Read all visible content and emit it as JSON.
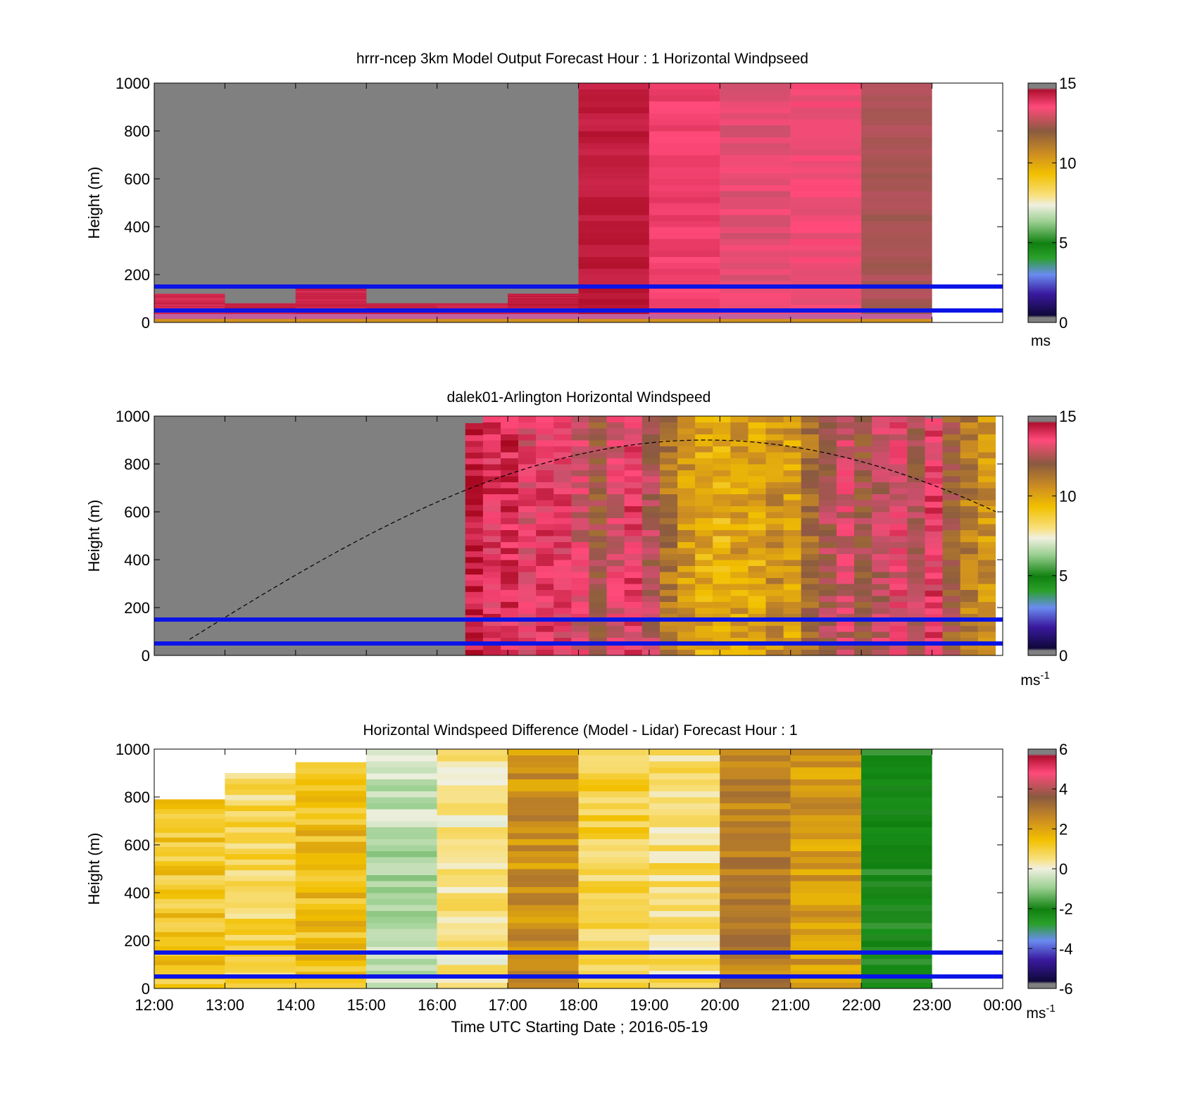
{
  "figure": {
    "xlabel": "Time UTC  Starting Date ; 2016-05-19",
    "x_tick_labels": [
      "12:00",
      "13:00",
      "14:00",
      "15:00",
      "16:00",
      "17:00",
      "18:00",
      "19:00",
      "20:00",
      "21:00",
      "22:00",
      "23:00",
      "00:00"
    ],
    "colors": {
      "blue_line": "#0a14e6",
      "missing": "#808080"
    }
  },
  "chart_data": [
    {
      "type": "heatmap",
      "title": "hrrr-ncep 3km Model Output   Forecast Hour : 1 Horizontal Windpseed",
      "xlabel": "",
      "ylabel": "Height (m)",
      "xlim": [
        12,
        24
      ],
      "ylim": [
        0,
        1000
      ],
      "y_ticks": [
        0,
        200,
        400,
        600,
        800,
        1000
      ],
      "colorbar": {
        "min": 0,
        "max": 15,
        "ticks": [
          0,
          5,
          10,
          15
        ],
        "unit_label": "ms",
        "unit_sup": "",
        "palette": "speed"
      },
      "reference_lines_m": [
        150,
        50
      ],
      "columns": [
        {
          "start": 12,
          "end": 13,
          "top": 120,
          "value": 14.3
        },
        {
          "start": 13,
          "end": 14,
          "top": 80,
          "value": 14.5
        },
        {
          "start": 14,
          "end": 15,
          "top": 150,
          "value": 14.4
        },
        {
          "start": 15,
          "end": 16,
          "top": 80,
          "value": 14.5
        },
        {
          "start": 16,
          "end": 17,
          "top": 80,
          "value": 14.4
        },
        {
          "start": 17,
          "end": 18,
          "top": 120,
          "value": 14.5
        },
        {
          "start": 18,
          "end": 19,
          "top": 1000,
          "value": 14.6
        },
        {
          "start": 19,
          "end": 20,
          "top": 1000,
          "value": 13.8
        },
        {
          "start": 20,
          "end": 21,
          "top": 1000,
          "value": 13.3
        },
        {
          "start": 21,
          "end": 22,
          "top": 1000,
          "value": 13.5
        },
        {
          "start": 22,
          "end": 23,
          "top": 1000,
          "value": 12.5
        }
      ]
    },
    {
      "type": "heatmap",
      "title": "dalek01-Arlington  Horizontal Windspeed",
      "xlabel": "",
      "ylabel": "Height (m)",
      "xlim": [
        12,
        24
      ],
      "ylim": [
        0,
        1000
      ],
      "y_ticks": [
        0,
        200,
        400,
        600,
        800,
        1000
      ],
      "colorbar": {
        "min": 0,
        "max": 15,
        "ticks": [
          0,
          5,
          10,
          15
        ],
        "unit_label": "ms",
        "unit_sup": "-1",
        "palette": "speed"
      },
      "reference_lines_m": [
        150,
        50
      ],
      "solar_curve": {
        "peak_time": 19.8,
        "peak_height": 900,
        "zero_time": 12.5
      },
      "columns": [
        {
          "start": 16.4,
          "end": 16.65,
          "top": 970,
          "value": 14.6
        },
        {
          "start": 16.65,
          "end": 16.9,
          "top": 1000,
          "value": 14.0
        },
        {
          "start": 16.9,
          "end": 17.15,
          "top": 1000,
          "value": 14.2
        },
        {
          "start": 17.15,
          "end": 17.4,
          "top": 1000,
          "value": 13.5
        },
        {
          "start": 17.4,
          "end": 17.65,
          "top": 1000,
          "value": 13.8
        },
        {
          "start": 17.65,
          "end": 17.9,
          "top": 1000,
          "value": 13.7
        },
        {
          "start": 17.9,
          "end": 18.15,
          "top": 1000,
          "value": 13.2
        },
        {
          "start": 18.15,
          "end": 18.4,
          "top": 1000,
          "value": 12.2
        },
        {
          "start": 18.4,
          "end": 18.65,
          "top": 1000,
          "value": 13.3
        },
        {
          "start": 18.65,
          "end": 18.9,
          "top": 1000,
          "value": 13.8
        },
        {
          "start": 18.9,
          "end": 19.15,
          "top": 1000,
          "value": 12.6
        },
        {
          "start": 19.15,
          "end": 19.4,
          "top": 1000,
          "value": 11.2
        },
        {
          "start": 19.4,
          "end": 19.65,
          "top": 1000,
          "value": 10.4
        },
        {
          "start": 19.65,
          "end": 19.9,
          "top": 1000,
          "value": 10.0
        },
        {
          "start": 19.9,
          "end": 20.15,
          "top": 1000,
          "value": 9.8
        },
        {
          "start": 20.15,
          "end": 20.4,
          "top": 1000,
          "value": 10.2
        },
        {
          "start": 20.4,
          "end": 20.65,
          "top": 1000,
          "value": 10.0
        },
        {
          "start": 20.65,
          "end": 20.9,
          "top": 1000,
          "value": 10.6
        },
        {
          "start": 20.9,
          "end": 21.15,
          "top": 1000,
          "value": 10.3
        },
        {
          "start": 21.15,
          "end": 21.4,
          "top": 1000,
          "value": 11.5
        },
        {
          "start": 21.4,
          "end": 21.65,
          "top": 1000,
          "value": 12.5
        },
        {
          "start": 21.65,
          "end": 21.9,
          "top": 1000,
          "value": 13.0
        },
        {
          "start": 21.9,
          "end": 22.15,
          "top": 1000,
          "value": 12.2
        },
        {
          "start": 22.15,
          "end": 22.4,
          "top": 1000,
          "value": 12.8
        },
        {
          "start": 22.4,
          "end": 22.65,
          "top": 1000,
          "value": 13.4
        },
        {
          "start": 22.65,
          "end": 22.9,
          "top": 1000,
          "value": 12.5
        },
        {
          "start": 22.9,
          "end": 23.15,
          "top": 990,
          "value": 13.8
        },
        {
          "start": 23.15,
          "end": 23.4,
          "top": 1000,
          "value": 12.0
        },
        {
          "start": 23.4,
          "end": 23.65,
          "top": 1000,
          "value": 11.0
        },
        {
          "start": 23.65,
          "end": 23.9,
          "top": 1000,
          "value": 10.5
        }
      ]
    },
    {
      "type": "heatmap",
      "title": "Horizontal Windspeed Difference (Model - Lidar) Forecast Hour : 1",
      "xlabel": "Time UTC  Starting Date ; 2016-05-19",
      "ylabel": "Height (m)",
      "xlim": [
        12,
        24
      ],
      "ylim": [
        0,
        1000
      ],
      "y_ticks": [
        0,
        200,
        400,
        600,
        800,
        1000
      ],
      "colorbar": {
        "min": -6,
        "max": 6,
        "ticks": [
          -6,
          -4,
          -2,
          0,
          2,
          4,
          6
        ],
        "unit_label": "ms",
        "unit_sup": "-1",
        "palette": "diff"
      },
      "reference_lines_m": [
        150,
        50
      ],
      "columns": [
        {
          "start": 12,
          "end": 13,
          "top": 790,
          "value": 1.3
        },
        {
          "start": 13,
          "end": 14,
          "top": 900,
          "value": 0.8
        },
        {
          "start": 14,
          "end": 15,
          "top": 945,
          "value": 1.5
        },
        {
          "start": 15,
          "end": 16,
          "top": 1000,
          "value": -0.6
        },
        {
          "start": 16,
          "end": 17,
          "top": 1000,
          "value": 0.4
        },
        {
          "start": 17,
          "end": 18,
          "top": 1000,
          "value": 2.4
        },
        {
          "start": 18,
          "end": 19,
          "top": 1000,
          "value": 0.9
        },
        {
          "start": 19,
          "end": 20,
          "top": 1000,
          "value": 0.6
        },
        {
          "start": 20,
          "end": 21,
          "top": 1000,
          "value": 2.8
        },
        {
          "start": 21,
          "end": 22,
          "top": 1000,
          "value": 2.2
        },
        {
          "start": 22,
          "end": 23,
          "top": 1000,
          "value": -2.4
        }
      ]
    }
  ]
}
